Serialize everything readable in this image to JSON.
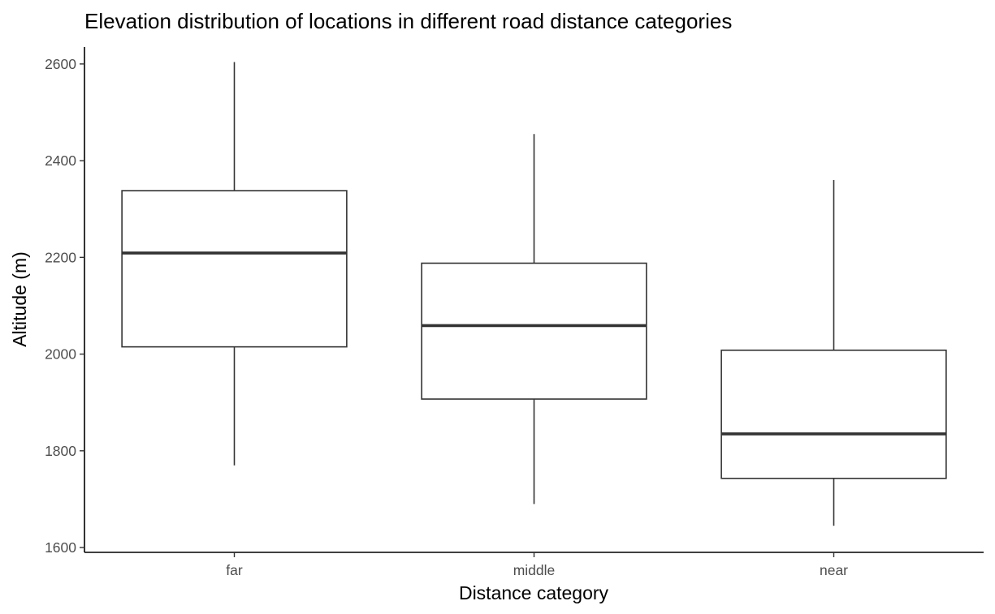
{
  "chart_data": {
    "type": "box",
    "title": "Elevation distribution of locations in different road distance categories",
    "xlabel": "Distance category",
    "ylabel": "Altitude (m)",
    "categories": [
      "far",
      "middle",
      "near"
    ],
    "boxes": [
      {
        "category": "far",
        "min": 1770,
        "q1": 2015,
        "median": 2209,
        "q3": 2338,
        "max": 2604
      },
      {
        "category": "middle",
        "min": 1690,
        "q1": 1907,
        "median": 2059,
        "q3": 2188,
        "max": 2455
      },
      {
        "category": "near",
        "min": 1645,
        "q1": 1743,
        "median": 1835,
        "q3": 2008,
        "max": 2360
      }
    ],
    "yticks": [
      1600,
      1800,
      2000,
      2200,
      2400,
      2600
    ],
    "ylim": [
      1590,
      2635
    ],
    "grid": false,
    "legend": "none"
  }
}
